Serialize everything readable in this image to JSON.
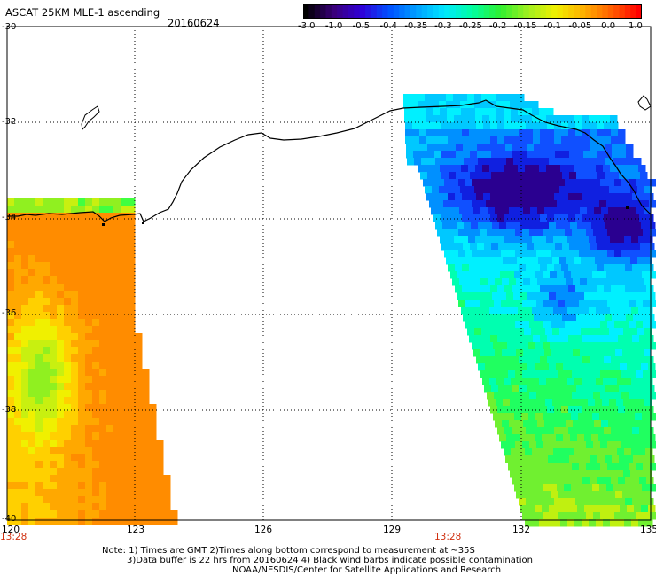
{
  "header": {
    "title": "ASCAT 25KM MLE-1 ascending",
    "date": "20160624"
  },
  "colorbar": {
    "ticks": [
      "-3.0",
      "-1.0",
      "-0.5",
      "-0.4",
      "-0.35",
      "-0.3",
      "-0.25",
      "-0.2",
      "-0.15",
      "-0.1",
      "-0.05",
      "0.0",
      "1.0"
    ],
    "colors": [
      "#000000",
      "#3a007a",
      "#3000d8",
      "#0050ff",
      "#00a0ff",
      "#00e8ff",
      "#00ffa0",
      "#30f030",
      "#a0f020",
      "#f0f000",
      "#ffb000",
      "#ff6000",
      "#ff0000"
    ]
  },
  "axes": {
    "lat_labels": [
      "-30",
      "-32",
      "-34",
      "-36",
      "-38",
      "-40"
    ],
    "lon_labels": [
      "120",
      "123",
      "126",
      "129",
      "132",
      "135"
    ],
    "lat_range": [
      -40,
      -30
    ],
    "lon_range": [
      120,
      135
    ],
    "grid": true
  },
  "swath_times": [
    "13:28",
    "13:28"
  ],
  "footer": {
    "line1": "Note: 1) Times are GMT 2)Times along bottom correspond to measurement at ~35S",
    "line2": "3)Data buffer is 22 hrs from 20160624 4) Black wind barbs indicate possible contamination",
    "line3": "NOAA/NESDIS/Center for Satellite Applications and Research"
  }
}
